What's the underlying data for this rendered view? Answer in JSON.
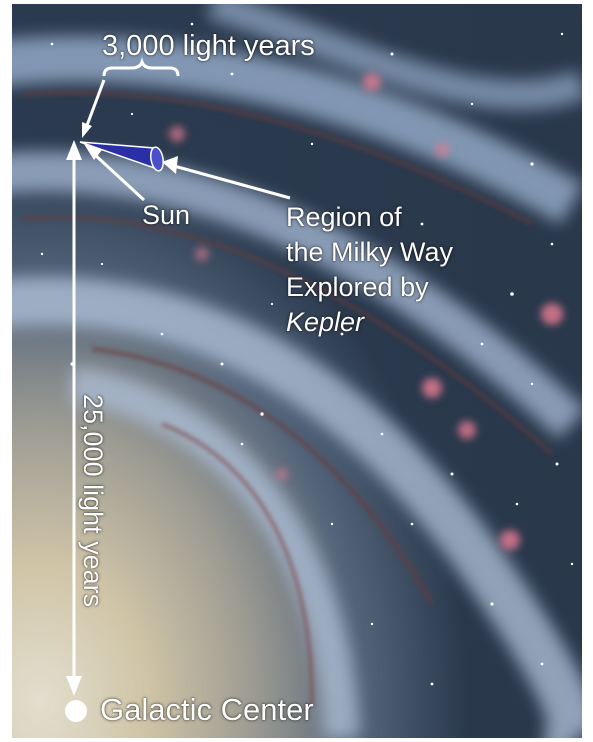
{
  "labels": {
    "scale": "3,000 light years",
    "sun": "Sun",
    "region_line1": "Region of",
    "region_line2": "the Milky Way",
    "region_line3": "Explored by",
    "region_line4": "Kepler",
    "distance": "25,000 light years",
    "center": "Galactic Center"
  },
  "colors": {
    "space_dark": "#1e2a3a",
    "arm_blue": "#8ea6c6",
    "bulge": "#e8dcc0",
    "cone": "#2a2fa8",
    "annotation": "#ffffff",
    "nebula_pink": "#e07a90"
  }
}
